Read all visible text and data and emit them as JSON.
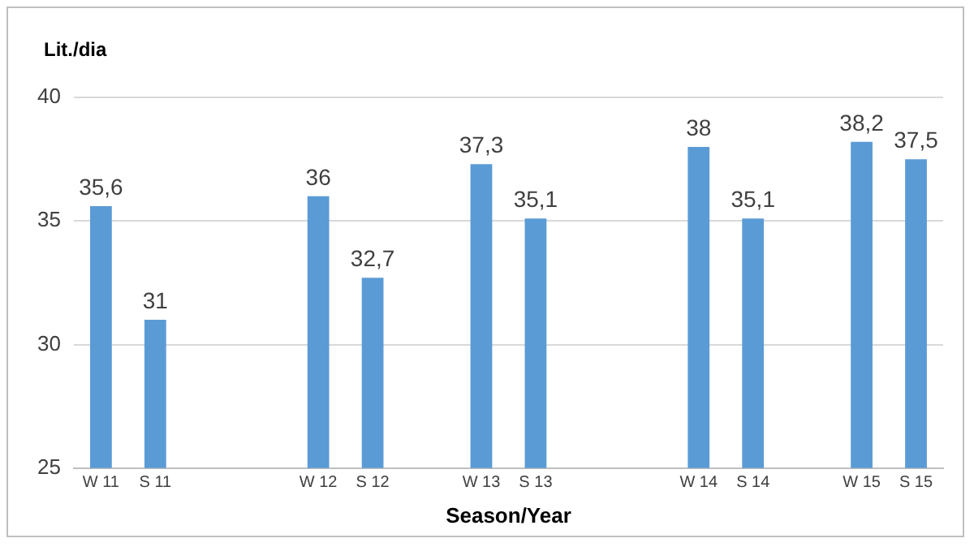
{
  "chart_data": {
    "type": "bar",
    "xlabel": "Season/Year",
    "ylabel": "Lit./dia",
    "categories": [
      "W 11",
      "S 11",
      null,
      null,
      "W 12",
      "S 12",
      null,
      "W 13",
      "S 13",
      null,
      null,
      "W 14",
      "S 14",
      null,
      "W 15",
      "S 15"
    ],
    "values": [
      35.6,
      31,
      null,
      null,
      36,
      32.7,
      null,
      37.3,
      35.1,
      null,
      null,
      38,
      35.1,
      null,
      38.2,
      37.5
    ],
    "value_labels": [
      "35,6",
      "31",
      null,
      null,
      "36",
      "32,7",
      null,
      "37,3",
      "35,1",
      null,
      null,
      "38",
      "35,1",
      null,
      "38,2",
      "37,5"
    ],
    "color": "#5b9bd5",
    "ylim": [
      25,
      40
    ],
    "yticks": [
      25,
      30,
      35,
      40
    ],
    "grid": "y"
  }
}
